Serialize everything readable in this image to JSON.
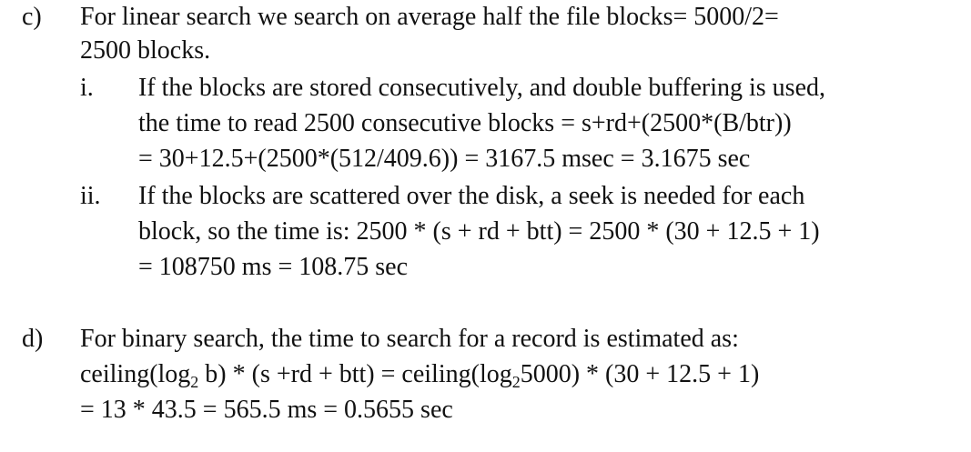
{
  "section_c": {
    "label": "c)",
    "line1": "For linear search we search on average half the file blocks= 5000/2=",
    "line2": "2500 blocks.",
    "item_i": {
      "label": "i.",
      "line1": "If the blocks are stored consecutively, and double buffering is used,",
      "line2": "the time to read 2500 consecutive blocks = s+rd+(2500*(B/btr))",
      "line3": "= 30+12.5+(2500*(512/409.6)) = 3167.5 msec = 3.1675 sec"
    },
    "item_ii": {
      "label": "ii.",
      "line1": "If the blocks are scattered over the disk, a seek is needed for each",
      "line2": "block, so the time is: 2500 * (s + rd + btt) = 2500 * (30 + 12.5 + 1)",
      "line3": "= 108750 ms = 108.75 sec"
    }
  },
  "section_d": {
    "label": "d)",
    "line1": "For binary search, the time to search for a record is estimated as:",
    "line2_a": "ceiling(log",
    "line2_sub1": "2",
    "line2_b": " b) * (s +rd + btt) = ceiling(log",
    "line2_sub2": "2",
    "line2_c": "5000) * (30 + 12.5 + 1)",
    "line3": "= 13 * 43.5 = 565.5 ms = 0.5655 sec"
  }
}
